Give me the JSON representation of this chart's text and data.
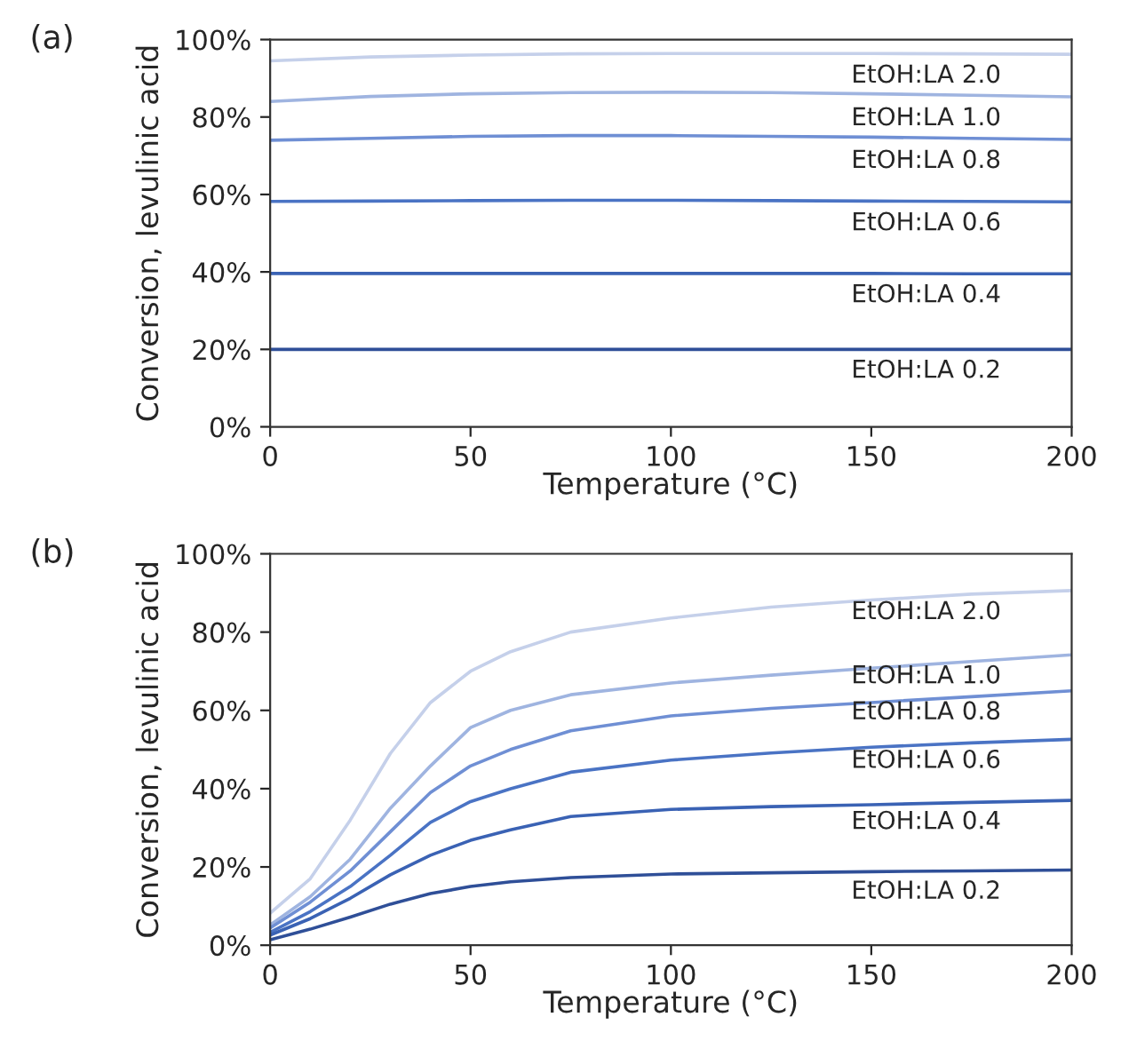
{
  "chart_data": [
    {
      "type": "line",
      "title": "(a)",
      "xlabel": "Temperature (°C)",
      "ylabel": "Conversion, levulinic acid",
      "x": [
        0,
        25,
        50,
        75,
        100,
        125,
        150,
        175,
        200
      ],
      "series": [
        {
          "name": "EtOH:LA 2.0",
          "color": "#c5d0ea",
          "values": [
            94.5,
            95.5,
            96,
            96.3,
            96.4,
            96.4,
            96.4,
            96.3,
            96.2
          ]
        },
        {
          "name": "EtOH:LA 1.0",
          "color": "#9fb4e0",
          "values": [
            84,
            85.3,
            86,
            86.3,
            86.4,
            86.3,
            86,
            85.6,
            85.2
          ]
        },
        {
          "name": "EtOH:LA 0.8",
          "color": "#6f8fd4",
          "values": [
            74,
            74.5,
            75,
            75.2,
            75.2,
            75,
            74.8,
            74.5,
            74.2
          ]
        },
        {
          "name": "EtOH:LA 0.6",
          "color": "#4a73c4",
          "values": [
            58.2,
            58.3,
            58.4,
            58.5,
            58.5,
            58.4,
            58.3,
            58.2,
            58.1
          ]
        },
        {
          "name": "EtOH:LA 0.4",
          "color": "#3a62b4",
          "values": [
            39.6,
            39.6,
            39.6,
            39.6,
            39.6,
            39.6,
            39.6,
            39.5,
            39.5
          ]
        },
        {
          "name": "EtOH:LA 0.2",
          "color": "#2f4f98",
          "values": [
            20,
            20,
            20,
            20,
            20,
            20,
            20,
            20,
            20
          ]
        }
      ],
      "xlim": [
        0,
        200
      ],
      "xticks": [
        0,
        50,
        100,
        150,
        200
      ],
      "ylim": [
        0,
        100
      ],
      "yticks": [
        {
          "value": 0,
          "label": "0%"
        },
        {
          "value": 20,
          "label": "20%"
        },
        {
          "value": 40,
          "label": "40%"
        },
        {
          "value": 60,
          "label": "60%"
        },
        {
          "value": 80,
          "label": "80%"
        },
        {
          "value": 100,
          "label": "100%"
        }
      ],
      "grid": false,
      "legend": false
    },
    {
      "type": "line",
      "title": "(b)",
      "xlabel": "Temperature (°C)",
      "ylabel": "Conversion, levulinic acid",
      "x": [
        0,
        10,
        20,
        30,
        40,
        50,
        60,
        75,
        100,
        125,
        150,
        175,
        200
      ],
      "series": [
        {
          "name": "EtOH:LA 2.0",
          "color": "#c5d0ea",
          "values": [
            8.2,
            17,
            32,
            49,
            62,
            70,
            75,
            80,
            83.6,
            86.4,
            88.2,
            89.7,
            90.6
          ]
        },
        {
          "name": "EtOH:LA 1.0",
          "color": "#9fb4e0",
          "values": [
            5.2,
            12.4,
            22,
            35,
            45.8,
            55.6,
            60,
            64,
            67,
            69,
            70.8,
            72.5,
            74.2
          ]
        },
        {
          "name": "EtOH:LA 0.8",
          "color": "#6f8fd4",
          "values": [
            4.4,
            11,
            19,
            29,
            39,
            45.8,
            50,
            54.8,
            58.6,
            60.5,
            62,
            63.5,
            65
          ]
        },
        {
          "name": "EtOH:LA 0.6",
          "color": "#4a73c4",
          "values": [
            3.3,
            8.6,
            15,
            23,
            31.4,
            36.7,
            40,
            44.2,
            47.3,
            49.1,
            50.6,
            51.7,
            52.6
          ]
        },
        {
          "name": "EtOH:LA 0.4",
          "color": "#3a62b4",
          "values": [
            2.6,
            6.8,
            12,
            18,
            23,
            26.8,
            29.5,
            32.9,
            34.7,
            35.4,
            35.9,
            36.5,
            37
          ]
        },
        {
          "name": "EtOH:LA 0.2",
          "color": "#2f4f98",
          "values": [
            1.4,
            4.1,
            7.2,
            10.5,
            13.2,
            15,
            16.2,
            17.3,
            18.2,
            18.5,
            18.8,
            19,
            19.2
          ]
        }
      ],
      "xlim": [
        0,
        200
      ],
      "xticks": [
        0,
        50,
        100,
        150,
        200
      ],
      "ylim": [
        0,
        100
      ],
      "yticks": [
        {
          "value": 0,
          "label": "0%"
        },
        {
          "value": 20,
          "label": "20%"
        },
        {
          "value": 40,
          "label": "40%"
        },
        {
          "value": 60,
          "label": "60%"
        },
        {
          "value": 80,
          "label": "80%"
        },
        {
          "value": 100,
          "label": "100%"
        }
      ],
      "grid": false,
      "legend": false
    }
  ]
}
